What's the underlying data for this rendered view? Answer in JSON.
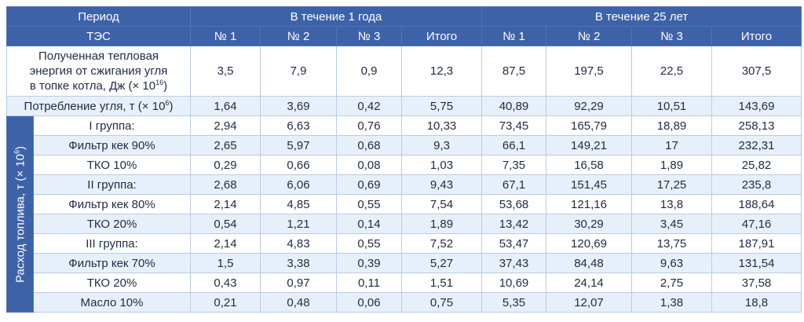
{
  "header": {
    "period_label": "Период",
    "period_1y": "В течение 1 года",
    "period_25y": "В течение 25 лет",
    "tes_label": "ТЭС",
    "cols": [
      "№ 1",
      "№ 2",
      "№ 3",
      "Итого",
      "№ 1",
      "№ 2",
      "№ 3",
      "Итого"
    ]
  },
  "row_heat": {
    "label_line1": "Полученная тепловая",
    "label_line2": "энергия от сжигания угля",
    "label_line3": "в топке котла, Дж (× 10",
    "label_sup": "16",
    "label_close": ")",
    "values": [
      "3,5",
      "7,9",
      "0,9",
      "12,3",
      "87,5",
      "197,5",
      "22,5",
      "307,5"
    ]
  },
  "row_coal": {
    "label": "Потребление угля, т (× 10",
    "label_sup": "6",
    "label_close": ")",
    "values": [
      "1,64",
      "3,69",
      "0,42",
      "5,75",
      "40,89",
      "92,29",
      "10,51",
      "143,69"
    ]
  },
  "side": {
    "label": "Расход топлива, т (× 10",
    "label_sup": "6",
    "label_close": ")"
  },
  "rows": [
    {
      "label": "I группа:",
      "values": [
        "2,94",
        "6,63",
        "0,76",
        "10,33",
        "73,45",
        "165,79",
        "18,89",
        "258,13"
      ]
    },
    {
      "label": "Фильтр кек 90%",
      "values": [
        "2,65",
        "5,97",
        "0,68",
        "9,3",
        "66,1",
        "149,21",
        "17",
        "232,31"
      ]
    },
    {
      "label": "ТКО 10%",
      "values": [
        "0,29",
        "0,66",
        "0,08",
        "1,03",
        "7,35",
        "16,58",
        "1,89",
        "25,82"
      ]
    },
    {
      "label": "II группа:",
      "values": [
        "2,68",
        "6,06",
        "0,69",
        "9,43",
        "67,1",
        "151,45",
        "17,25",
        "235,8"
      ]
    },
    {
      "label": "Фильтр кек 80%",
      "values": [
        "2,14",
        "4,85",
        "0,55",
        "7,54",
        "53,68",
        "121,16",
        "13,8",
        "188,64"
      ]
    },
    {
      "label": "ТКО 20%",
      "values": [
        "0,54",
        "1,21",
        "0,14",
        "1,89",
        "13,42",
        "30,29",
        "3,45",
        "47,16"
      ]
    },
    {
      "label": "III группа:",
      "values": [
        "2,14",
        "4,83",
        "0,55",
        "7,52",
        "53,47",
        "120,69",
        "13,75",
        "187,91"
      ]
    },
    {
      "label": "Фильтр кек 70%",
      "values": [
        "1,5",
        "3,38",
        "0,39",
        "5,27",
        "37,43",
        "84,48",
        "9,63",
        "131,54"
      ]
    },
    {
      "label": "ТКО 20%",
      "values": [
        "0,43",
        "0,97",
        "0,11",
        "1,51",
        "10,69",
        "24,14",
        "2,75",
        "37,58"
      ]
    },
    {
      "label": "Масло 10%",
      "values": [
        "0,21",
        "0,48",
        "0,06",
        "0,75",
        "5,35",
        "12,07",
        "1,38",
        "18,8"
      ]
    }
  ]
}
